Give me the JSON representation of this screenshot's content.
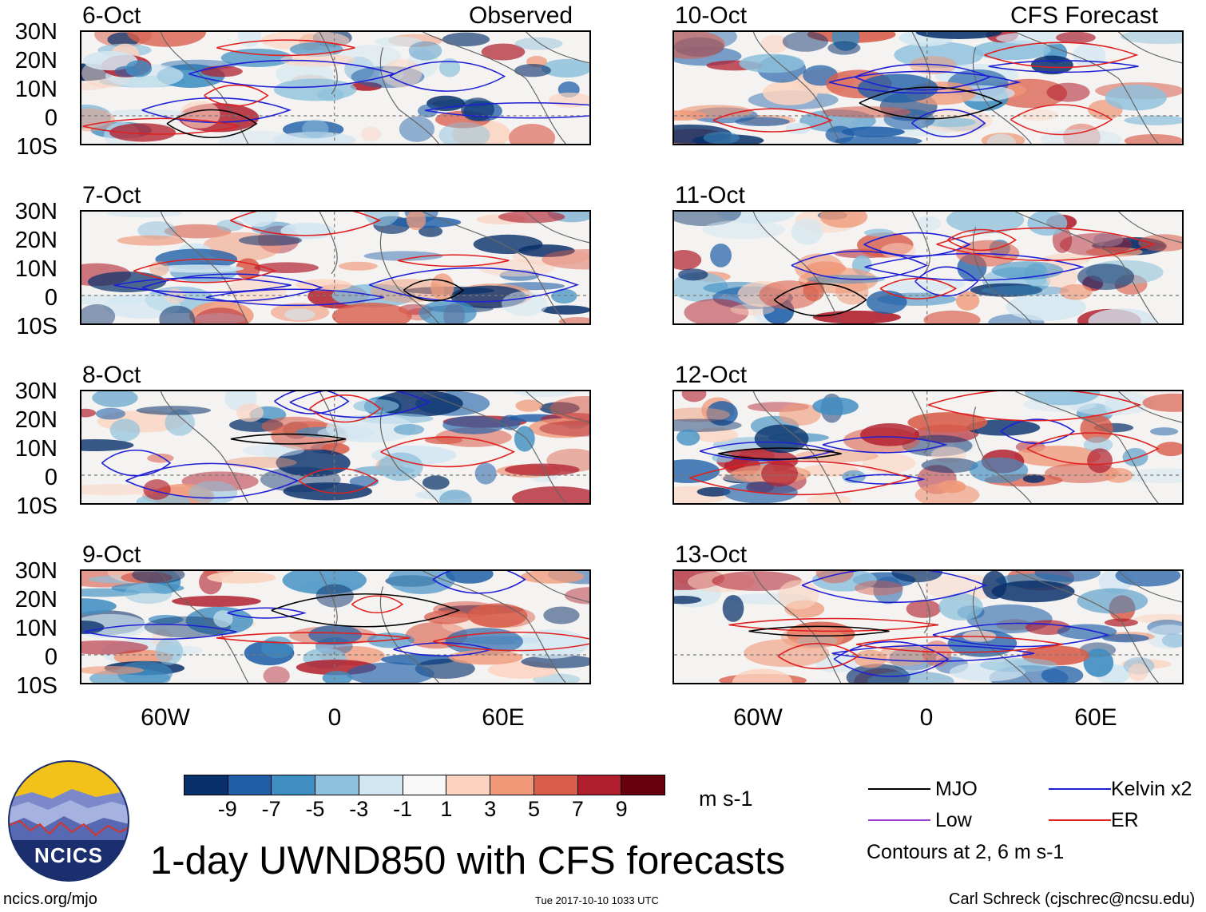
{
  "title": "1-day UWND850 with CFS forecasts",
  "observed_label": "Observed",
  "forecast_label": "CFS Forecast",
  "panels_left": [
    {
      "date": "6-Oct"
    },
    {
      "date": "7-Oct"
    },
    {
      "date": "8-Oct"
    },
    {
      "date": "9-Oct"
    }
  ],
  "panels_right": [
    {
      "date": "10-Oct"
    },
    {
      "date": "11-Oct"
    },
    {
      "date": "12-Oct"
    },
    {
      "date": "13-Oct"
    }
  ],
  "lat_labels": [
    "30N",
    "20N",
    "10N",
    "0",
    "10S"
  ],
  "lon_labels": [
    "60W",
    "0",
    "60E"
  ],
  "colorbar": {
    "labels": [
      "-9",
      "-7",
      "-5",
      "-3",
      "-1",
      "1",
      "3",
      "5",
      "7",
      "9"
    ],
    "colors": [
      "#08306b",
      "#1f5fa8",
      "#3f8ec2",
      "#8cc0dc",
      "#d2e6f1",
      "#f9f9f9",
      "#fbd3c0",
      "#f09a7a",
      "#d95d4b",
      "#b01d2c",
      "#67000d"
    ],
    "units": "m s-1"
  },
  "legend": {
    "mjo": {
      "label": "MJO",
      "color": "#000000"
    },
    "kelvin": {
      "label": "Kelvin x2",
      "color": "#1f1fd6"
    },
    "low": {
      "label": "Low",
      "color": "#9b3fd0"
    },
    "er": {
      "label": "ER",
      "color": "#e02020"
    },
    "note": "Contours at 2, 6 m s-1"
  },
  "logo_text": "NCICS",
  "footer": {
    "url": "ncics.org/mjo",
    "timestamp": "Tue 2017-10-10 1033 UTC",
    "credit": "Carl Schreck (cjschrec@ncsu.edu)"
  }
}
